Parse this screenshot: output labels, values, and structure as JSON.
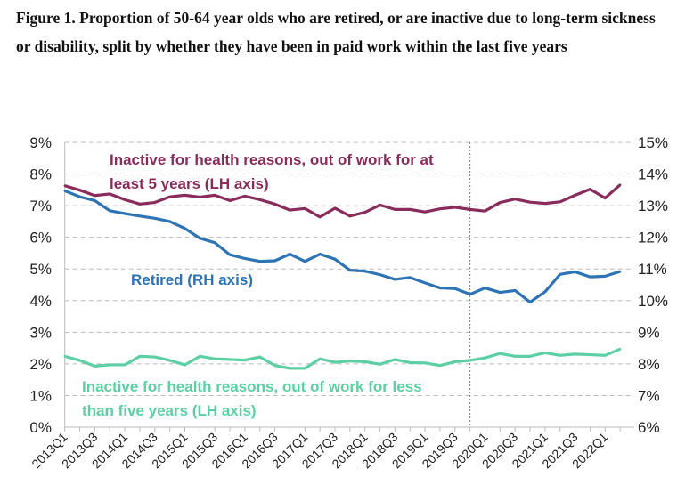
{
  "chart_data": {
    "type": "line",
    "title": "Figure 1. Proportion of 50-64 year olds who are retired, or are inactive due to long-term sickness or disability, split by whether they have been in paid work within the last five years",
    "x": [
      "2013Q1",
      "2013Q2",
      "2013Q3",
      "2013Q4",
      "2014Q1",
      "2014Q2",
      "2014Q3",
      "2014Q4",
      "2015Q1",
      "2015Q2",
      "2015Q3",
      "2015Q4",
      "2016Q1",
      "2016Q2",
      "2016Q3",
      "2016Q4",
      "2017Q1",
      "2017Q2",
      "2017Q3",
      "2017Q4",
      "2018Q1",
      "2018Q2",
      "2018Q3",
      "2018Q4",
      "2019Q1",
      "2019Q2",
      "2019Q3",
      "2019Q4",
      "2020Q1",
      "2020Q2",
      "2020Q3",
      "2020Q4",
      "2021Q1",
      "2021Q2",
      "2021Q3",
      "2021Q4",
      "2022Q1",
      "2022Q2"
    ],
    "tick_labels": [
      "2013Q1",
      "2013Q3",
      "2014Q1",
      "2014Q3",
      "2015Q1",
      "2015Q3",
      "2016Q1",
      "2016Q3",
      "2017Q1",
      "2017Q3",
      "2018Q1",
      "2018Q3",
      "2019Q1",
      "2019Q3",
      "2020Q1",
      "2020Q3",
      "2021Q1",
      "2021Q3",
      "2022Q1"
    ],
    "left_axis": {
      "ylim": [
        0,
        9
      ],
      "ticks": [
        "0%",
        "1%",
        "2%",
        "3%",
        "4%",
        "5%",
        "6%",
        "7%",
        "8%",
        "9%"
      ]
    },
    "right_axis": {
      "ylim": [
        6,
        15
      ],
      "ticks": [
        "6%",
        "7%",
        "8%",
        "9%",
        "10%",
        "11%",
        "12%",
        "13%",
        "14%",
        "15%"
      ]
    },
    "grid": true,
    "vertical_marker_after": "2019Q4",
    "series": [
      {
        "name": "Inactive for health reasons, out of work for at least 5 years (LH axis)",
        "label_lines": [
          "Inactive for health reasons, out of work for at",
          "least 5 years (LH axis)"
        ],
        "axis": "left",
        "color": "#8a2c5b",
        "values": [
          7.63,
          7.49,
          7.32,
          7.37,
          7.19,
          7.05,
          7.1,
          7.28,
          7.33,
          7.27,
          7.33,
          7.16,
          7.3,
          7.19,
          7.05,
          6.86,
          6.91,
          6.64,
          6.92,
          6.67,
          6.79,
          7.02,
          6.88,
          6.88,
          6.8,
          6.9,
          6.95,
          6.88,
          6.83,
          7.1,
          7.21,
          7.11,
          7.07,
          7.12,
          7.33,
          7.52,
          7.24,
          7.66
        ]
      },
      {
        "name": "Retired (RH axis)",
        "label_lines": [
          "Retired (RH axis)"
        ],
        "axis": "right",
        "color": "#2e74b5",
        "values": [
          13.47,
          13.28,
          13.16,
          12.84,
          12.75,
          12.67,
          12.6,
          12.5,
          12.28,
          11.97,
          11.83,
          11.45,
          11.33,
          11.24,
          11.26,
          11.47,
          11.24,
          11.47,
          11.31,
          10.96,
          10.93,
          10.82,
          10.67,
          10.73,
          10.56,
          10.4,
          10.38,
          10.2,
          10.4,
          10.26,
          10.32,
          9.95,
          10.28,
          10.83,
          10.91,
          10.75,
          10.77,
          10.92
        ]
      },
      {
        "name": "Inactive for health reasons, out of work for less than five years (LH axis)",
        "label_lines": [
          "Inactive for health reasons, out of work for less",
          "than five years (LH axis)"
        ],
        "axis": "left",
        "color": "#5ccfa5",
        "values": [
          2.24,
          2.11,
          1.93,
          1.97,
          1.97,
          2.24,
          2.22,
          2.11,
          1.97,
          2.24,
          2.16,
          2.14,
          2.12,
          2.22,
          1.95,
          1.86,
          1.86,
          2.16,
          2.05,
          2.09,
          2.07,
          1.99,
          2.14,
          2.04,
          2.03,
          1.95,
          2.07,
          2.11,
          2.19,
          2.33,
          2.24,
          2.24,
          2.35,
          2.27,
          2.31,
          2.29,
          2.27,
          2.47
        ]
      }
    ]
  }
}
